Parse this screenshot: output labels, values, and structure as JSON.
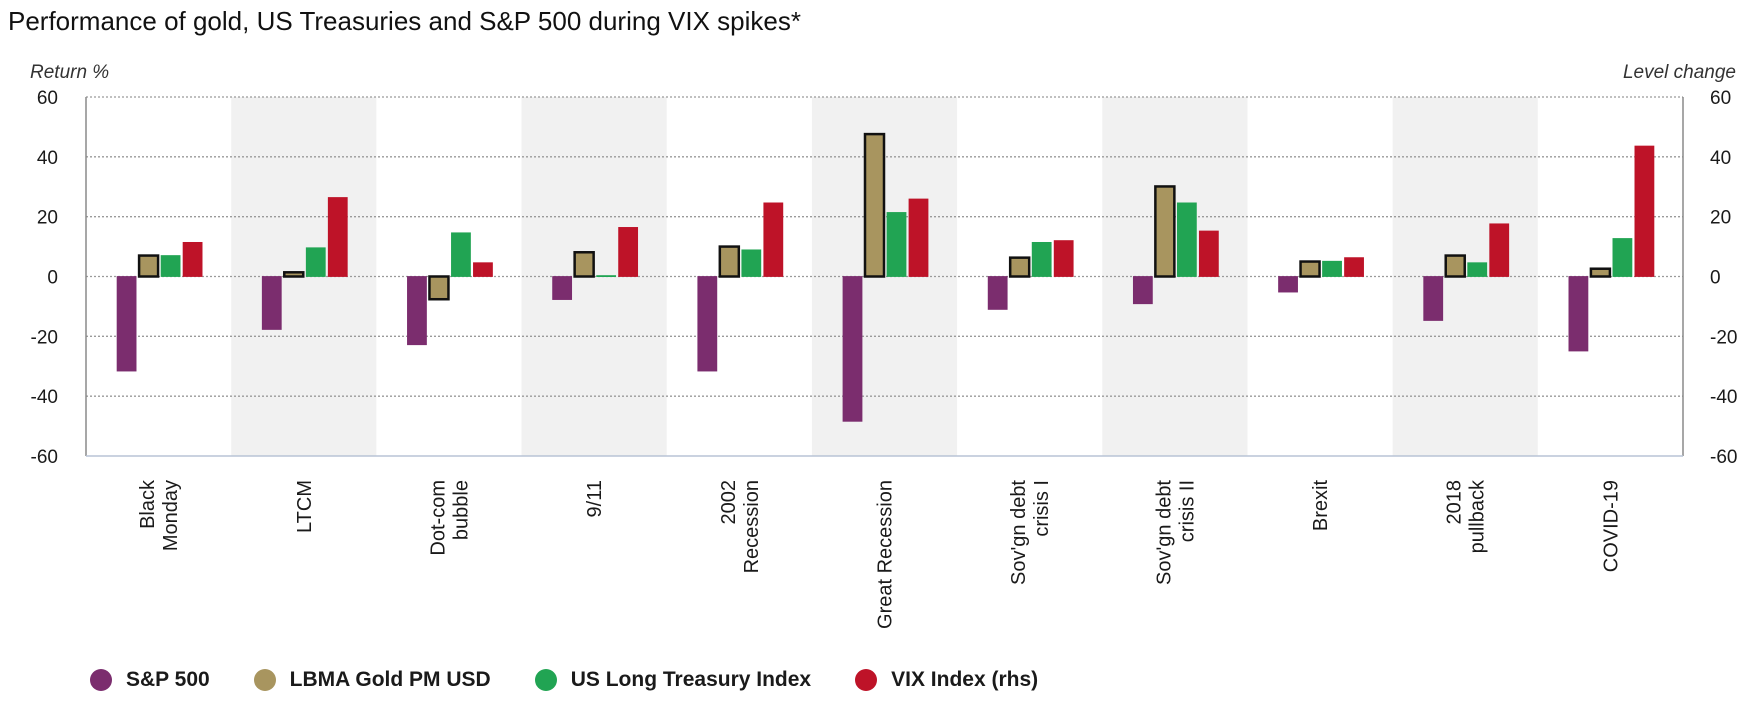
{
  "chart_data": {
    "type": "bar",
    "title": "Performance of gold, US Treasuries and S&P 500 during VIX spikes*",
    "ylabel": "Return %",
    "y2label": "Level change",
    "xlabel": "",
    "ylim": [
      -60,
      60
    ],
    "y2lim": [
      -60,
      60
    ],
    "yticks": [
      60,
      40,
      20,
      0,
      -20,
      -40,
      -60
    ],
    "grid": true,
    "legend_position": "bottom",
    "categories": [
      [
        "Black",
        "Monday"
      ],
      [
        "LTCM"
      ],
      [
        "Dot-com",
        "bubble"
      ],
      [
        "9/11"
      ],
      [
        "2002",
        "Recession"
      ],
      [
        "Great Recession"
      ],
      [
        "Sov'gn debt",
        "crisis I"
      ],
      [
        "Sov'gn debt",
        "crisis II"
      ],
      [
        "Brexit"
      ],
      [
        "2018",
        "pullback"
      ],
      [
        "COVID-19"
      ]
    ],
    "series": [
      {
        "name": "S&P 500",
        "color": "#7b2d6e",
        "axis": "left",
        "values": [
          -31.6,
          -17.7,
          -22.8,
          -7.7,
          -31.6,
          -48.4,
          -11.0,
          -9.1,
          -5.2,
          -14.7,
          -24.9
        ]
      },
      {
        "name": "LBMA Gold PM USD",
        "color": "#a8955f",
        "axis": "left",
        "outlined": true,
        "values": [
          7.0,
          1.4,
          -7.6,
          8.1,
          10.0,
          47.6,
          6.3,
          30.1,
          5.0,
          7.0,
          2.6
        ]
      },
      {
        "name": "US Long Treasury Index",
        "color": "#21a453",
        "axis": "left",
        "values": [
          7.0,
          9.6,
          14.6,
          0.3,
          8.9,
          21.4,
          11.4,
          24.6,
          5.1,
          4.6,
          12.7
        ]
      },
      {
        "name": "VIX Index (rhs)",
        "color": "#be1328",
        "axis": "right",
        "values": [
          11.4,
          26.4,
          4.6,
          16.4,
          24.6,
          25.9,
          12.0,
          15.2,
          6.3,
          17.6,
          43.6
        ]
      }
    ]
  }
}
